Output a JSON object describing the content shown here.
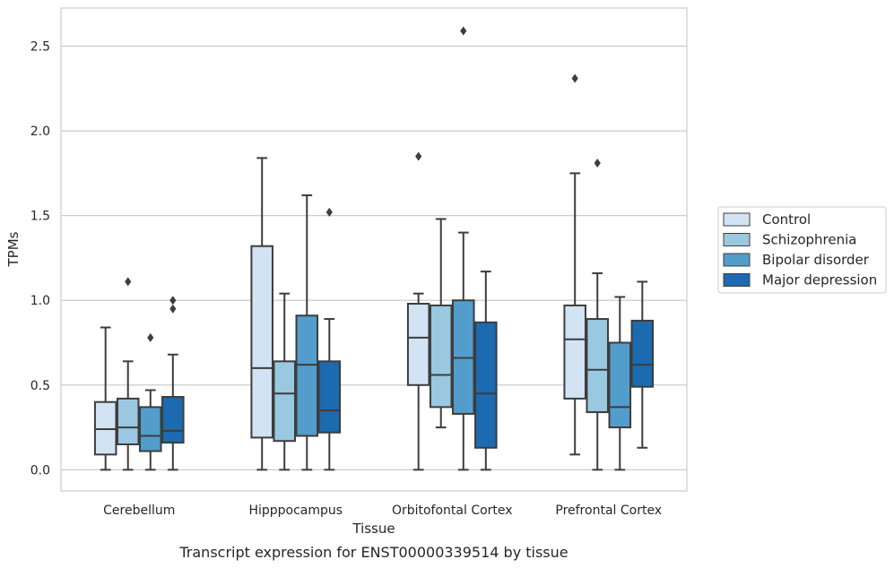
{
  "chart_data": {
    "type": "box",
    "xlabel": "Tissue",
    "ylabel": "TPMs",
    "caption": "Transcript expression for ENST00000339514 by tissue",
    "ylim": [
      -0.125,
      2.725
    ],
    "yticks": [
      "0.0",
      "0.5",
      "1.0",
      "1.5",
      "2.0",
      "2.5"
    ],
    "grid": true,
    "legend_position": "right",
    "categories": [
      "Cerebellum",
      "Hipppocampus",
      "Orbitofontal Cortex",
      "Prefrontal Cortex"
    ],
    "series": [
      {
        "name": "Control",
        "color": "#d2e3f3",
        "boxes": [
          {
            "whisker_low": 0.0,
            "q1": 0.09,
            "median": 0.24,
            "q3": 0.4,
            "whisker_high": 0.84,
            "outliers": []
          },
          {
            "whisker_low": 0.0,
            "q1": 0.19,
            "median": 0.6,
            "q3": 1.32,
            "whisker_high": 1.84,
            "outliers": []
          },
          {
            "whisker_low": 0.0,
            "q1": 0.5,
            "median": 0.78,
            "q3": 0.98,
            "whisker_high": 1.04,
            "outliers": [
              1.85
            ]
          },
          {
            "whisker_low": 0.09,
            "q1": 0.42,
            "median": 0.77,
            "q3": 0.97,
            "whisker_high": 1.75,
            "outliers": [
              2.31
            ]
          }
        ]
      },
      {
        "name": "Schizophrenia",
        "color": "#9ac8e0",
        "boxes": [
          {
            "whisker_low": 0.0,
            "q1": 0.15,
            "median": 0.25,
            "q3": 0.42,
            "whisker_high": 0.64,
            "outliers": [
              1.11
            ]
          },
          {
            "whisker_low": 0.0,
            "q1": 0.17,
            "median": 0.45,
            "q3": 0.64,
            "whisker_high": 1.04,
            "outliers": []
          },
          {
            "whisker_low": 0.25,
            "q1": 0.37,
            "median": 0.56,
            "q3": 0.97,
            "whisker_high": 1.48,
            "outliers": []
          },
          {
            "whisker_low": 0.0,
            "q1": 0.34,
            "median": 0.59,
            "q3": 0.89,
            "whisker_high": 1.16,
            "outliers": [
              1.81
            ]
          }
        ]
      },
      {
        "name": "Bipolar disorder",
        "color": "#529dcc",
        "boxes": [
          {
            "whisker_low": 0.0,
            "q1": 0.11,
            "median": 0.2,
            "q3": 0.37,
            "whisker_high": 0.47,
            "outliers": [
              0.78
            ]
          },
          {
            "whisker_low": 0.0,
            "q1": 0.2,
            "median": 0.62,
            "q3": 0.91,
            "whisker_high": 1.62,
            "outliers": []
          },
          {
            "whisker_low": 0.0,
            "q1": 0.33,
            "median": 0.66,
            "q3": 1.0,
            "whisker_high": 1.4,
            "outliers": [
              2.59
            ]
          },
          {
            "whisker_low": 0.0,
            "q1": 0.25,
            "median": 0.37,
            "q3": 0.75,
            "whisker_high": 1.02,
            "outliers": []
          }
        ]
      },
      {
        "name": "Major depression",
        "color": "#1c6aaf",
        "boxes": [
          {
            "whisker_low": 0.0,
            "q1": 0.16,
            "median": 0.23,
            "q3": 0.43,
            "whisker_high": 0.68,
            "outliers": [
              0.95,
              1.0
            ]
          },
          {
            "whisker_low": 0.0,
            "q1": 0.22,
            "median": 0.35,
            "q3": 0.64,
            "whisker_high": 0.89,
            "outliers": [
              1.52
            ]
          },
          {
            "whisker_low": 0.0,
            "q1": 0.13,
            "median": 0.45,
            "q3": 0.87,
            "whisker_high": 1.17,
            "outliers": []
          },
          {
            "whisker_low": 0.13,
            "q1": 0.49,
            "median": 0.62,
            "q3": 0.88,
            "whisker_high": 1.11,
            "outliers": []
          }
        ]
      }
    ]
  }
}
